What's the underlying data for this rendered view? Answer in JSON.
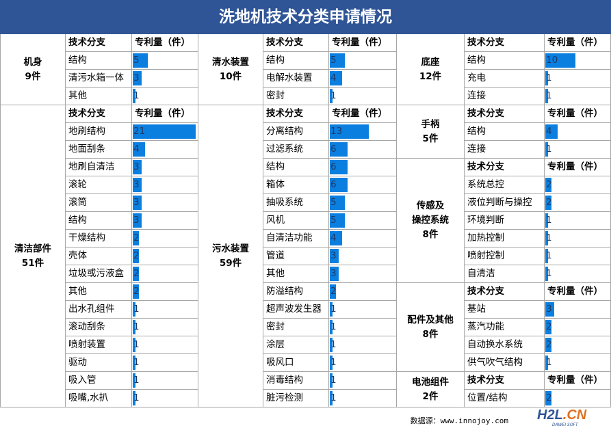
{
  "title": "洗地机技术分类申请情况",
  "headers": {
    "branch": "技术分支",
    "count": "专利量（件）"
  },
  "footer": "数据源：www.innojoy.com",
  "logo": {
    "main_a": "H2L",
    "main_b": ".CN",
    "sub": "DAWEI SOFT"
  },
  "colors": {
    "title_bg": "#2f5597",
    "bar": "#0a7fe0"
  },
  "max_value": 21,
  "groups": [
    {
      "id": "jishen",
      "name": "机身",
      "total": "9件",
      "rows": [
        {
          "label": "结构",
          "value": 5
        },
        {
          "label": "清污水箱一体",
          "value": 3
        },
        {
          "label": "其他",
          "value": 1
        }
      ]
    },
    {
      "id": "qingshui",
      "name": "清水装置",
      "total": "10件",
      "rows": [
        {
          "label": "结构",
          "value": 5
        },
        {
          "label": "电解水装置",
          "value": 4
        },
        {
          "label": "密封",
          "value": 1
        }
      ]
    },
    {
      "id": "dizuo",
      "name": "底座",
      "total": "12件",
      "rows": [
        {
          "label": "结构",
          "value": 10
        },
        {
          "label": "充电",
          "value": 1
        },
        {
          "label": "连接",
          "value": 1
        }
      ]
    },
    {
      "id": "qingjie",
      "name": "清洁部件",
      "total": "51件",
      "rows": [
        {
          "label": "地刷结构",
          "value": 21
        },
        {
          "label": "地面刮条",
          "value": 4
        },
        {
          "label": "地刷自清洁",
          "value": 3
        },
        {
          "label": "滚轮",
          "value": 3
        },
        {
          "label": "滚筒",
          "value": 3
        },
        {
          "label": "结构",
          "value": 3
        },
        {
          "label": "干燥结构",
          "value": 2
        },
        {
          "label": "壳体",
          "value": 2
        },
        {
          "label": "垃圾或污液盒",
          "value": 2
        },
        {
          "label": "其他",
          "value": 2
        },
        {
          "label": "出水孔组件",
          "value": 1
        },
        {
          "label": "滚动刮条",
          "value": 1
        },
        {
          "label": "喷射装置",
          "value": 1
        },
        {
          "label": "驱动",
          "value": 1
        },
        {
          "label": "吸入管",
          "value": 1
        },
        {
          "label": "吸嘴,水扒",
          "value": 1
        }
      ]
    },
    {
      "id": "wushui",
      "name": "污水装置",
      "total": "59件",
      "rows": [
        {
          "label": "分离结构",
          "value": 13
        },
        {
          "label": "过滤系统",
          "value": 6
        },
        {
          "label": "结构",
          "value": 6
        },
        {
          "label": "箱体",
          "value": 6
        },
        {
          "label": "抽吸系统",
          "value": 5
        },
        {
          "label": "风机",
          "value": 5
        },
        {
          "label": "自清洁功能",
          "value": 4
        },
        {
          "label": "管道",
          "value": 3
        },
        {
          "label": "其他",
          "value": 3
        },
        {
          "label": "防溢结构",
          "value": 2
        },
        {
          "label": "超声波发生器",
          "value": 1
        },
        {
          "label": "密封",
          "value": 1
        },
        {
          "label": "涂层",
          "value": 1
        },
        {
          "label": "吸风口",
          "value": 1
        },
        {
          "label": "消毒结构",
          "value": 1
        },
        {
          "label": "脏污检测",
          "value": 1
        }
      ]
    },
    {
      "id": "shoubing",
      "name": "手柄",
      "total": "5件",
      "rows": [
        {
          "label": "结构",
          "value": 4
        },
        {
          "label": "连接",
          "value": 1
        }
      ]
    },
    {
      "id": "chuangan",
      "name": "传感及\n操控系统",
      "total": "8件",
      "rows": [
        {
          "label": "系统总控",
          "value": 2
        },
        {
          "label": "液位判断与操控",
          "value": 2
        },
        {
          "label": "环境判断",
          "value": 1
        },
        {
          "label": "加热控制",
          "value": 1
        },
        {
          "label": "喷射控制",
          "value": 1
        },
        {
          "label": "自清洁",
          "value": 1
        }
      ]
    },
    {
      "id": "peijian",
      "name": "配件及其他",
      "total": "8件",
      "rows": [
        {
          "label": "基站",
          "value": 3
        },
        {
          "label": "蒸汽功能",
          "value": 2
        },
        {
          "label": "自动换水系统",
          "value": 2
        },
        {
          "label": "供气吹气结构",
          "value": 1
        }
      ]
    },
    {
      "id": "dianchi",
      "name": "电池组件",
      "total": "2件",
      "rows": [
        {
          "label": "位置/结构",
          "value": 2
        }
      ]
    }
  ]
}
